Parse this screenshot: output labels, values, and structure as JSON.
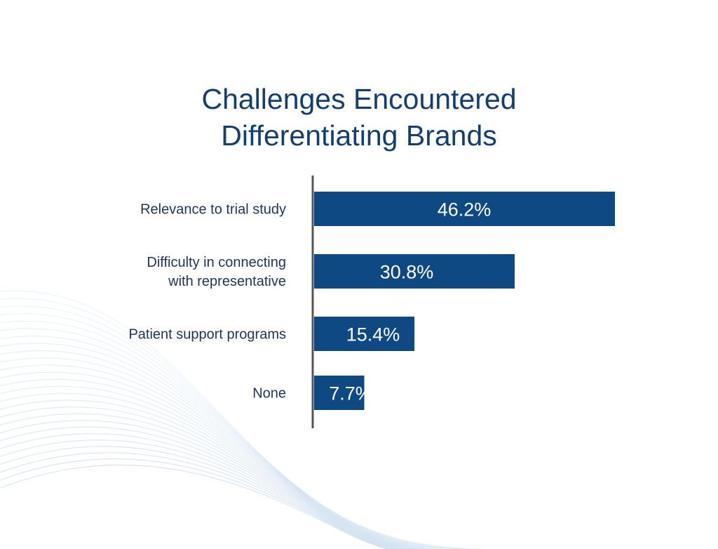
{
  "colors": {
    "title": "#123f73",
    "bar": "#0e4984",
    "axis": "#555555",
    "category_text": "#1c3558",
    "value_text": "#ffffff",
    "background_waves": "#bcd3ea"
  },
  "chart_data": {
    "type": "bar",
    "orientation": "horizontal",
    "title_lines": [
      "Challenges Encountered",
      "Differentiating Brands"
    ],
    "categories": [
      [
        "Relevance to trial study"
      ],
      [
        "Difficulty in connecting",
        "with representative"
      ],
      [
        "Patient support programs"
      ],
      [
        "None"
      ]
    ],
    "values": [
      46.2,
      30.8,
      15.4,
      7.7
    ],
    "value_labels": [
      "46.2%",
      "30.8%",
      "15.4%",
      "7.7%"
    ],
    "unit": "%",
    "xlim": [
      0,
      46.2
    ],
    "grid": false,
    "legend": "none"
  }
}
